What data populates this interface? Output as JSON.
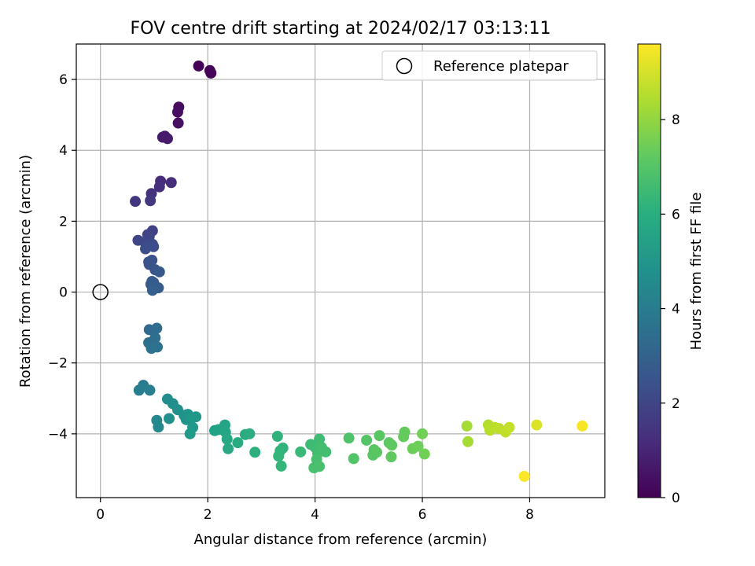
{
  "chart_data": {
    "type": "scatter",
    "title": "FOV centre drift starting at 2024/02/17 03:13:11",
    "xlabel": "Angular distance from reference (arcmin)",
    "ylabel": "Rotation from reference (arcmin)",
    "xlim": [
      -0.45,
      9.4
    ],
    "ylim": [
      -5.8,
      7.0
    ],
    "xticks": [
      0,
      2,
      4,
      6,
      8
    ],
    "xtick_labels": [
      "0",
      "2",
      "4",
      "6",
      "8"
    ],
    "yticks": [
      -4,
      -2,
      0,
      2,
      4,
      6
    ],
    "ytick_labels": [
      "−4",
      "−2",
      "0",
      "2",
      "4",
      "6"
    ],
    "grid": true,
    "legend": {
      "placement": "top-right",
      "entries": [
        {
          "label": "Reference platepar",
          "marker": "open-circle"
        }
      ]
    },
    "reference_point": {
      "x": 0,
      "y": 0,
      "label": "Reference platepar"
    },
    "colorbar": {
      "label": "Hours from first FF file",
      "range": [
        0,
        9.6
      ],
      "ticks": [
        0,
        2,
        4,
        6,
        8
      ],
      "tick_labels": [
        "0",
        "2",
        "4",
        "6",
        "8"
      ],
      "colormap": "viridis"
    },
    "series": [
      {
        "columns": [
          "x",
          "y",
          "hours"
        ],
        "points": [
          [
            1.83,
            6.38,
            0.05
          ],
          [
            2.04,
            6.25,
            0.1
          ],
          [
            2.06,
            6.18,
            0.15
          ],
          [
            1.46,
            5.22,
            0.3
          ],
          [
            1.44,
            5.08,
            0.35
          ],
          [
            1.45,
            4.77,
            0.45
          ],
          [
            1.2,
            4.4,
            0.6
          ],
          [
            1.16,
            4.37,
            0.65
          ],
          [
            1.25,
            4.33,
            0.7
          ],
          [
            1.12,
            3.13,
            1.2
          ],
          [
            1.32,
            3.09,
            1.25
          ],
          [
            1.1,
            2.97,
            1.3
          ],
          [
            0.95,
            2.78,
            1.4
          ],
          [
            0.65,
            2.56,
            1.5
          ],
          [
            0.93,
            2.58,
            1.55
          ],
          [
            0.97,
            1.73,
            1.9
          ],
          [
            0.88,
            1.62,
            1.95
          ],
          [
            0.91,
            1.57,
            2.0
          ],
          [
            0.7,
            1.46,
            2.05
          ],
          [
            0.83,
            1.4,
            2.1
          ],
          [
            0.97,
            1.35,
            2.15
          ],
          [
            0.88,
            1.3,
            2.2
          ],
          [
            0.84,
            1.22,
            2.25
          ],
          [
            0.99,
            1.28,
            2.25
          ],
          [
            0.96,
            0.9,
            2.4
          ],
          [
            0.9,
            0.85,
            2.45
          ],
          [
            0.91,
            0.78,
            2.5
          ],
          [
            1.02,
            0.63,
            2.55
          ],
          [
            1.1,
            0.57,
            2.6
          ],
          [
            0.96,
            0.3,
            2.7
          ],
          [
            0.99,
            0.27,
            2.75
          ],
          [
            0.94,
            0.22,
            2.8
          ],
          [
            1.08,
            0.12,
            2.85
          ],
          [
            0.97,
            0.05,
            2.9
          ],
          [
            0.91,
            -1.06,
            3.3
          ],
          [
            1.05,
            -1.02,
            3.35
          ],
          [
            1.02,
            -1.29,
            3.45
          ],
          [
            0.9,
            -1.43,
            3.5
          ],
          [
            1.06,
            -1.55,
            3.55
          ],
          [
            0.95,
            -1.59,
            3.6
          ],
          [
            0.8,
            -2.63,
            4.0
          ],
          [
            0.72,
            -2.77,
            4.05
          ],
          [
            0.92,
            -2.77,
            4.1
          ],
          [
            1.05,
            -3.62,
            4.5
          ],
          [
            1.08,
            -3.81,
            4.55
          ],
          [
            1.25,
            -3.02,
            4.7
          ],
          [
            1.35,
            -3.15,
            4.75
          ],
          [
            1.44,
            -3.32,
            4.8
          ],
          [
            1.28,
            -3.57,
            4.85
          ],
          [
            1.56,
            -3.48,
            4.9
          ],
          [
            1.6,
            -3.6,
            5.0
          ],
          [
            1.63,
            -3.45,
            5.0
          ],
          [
            1.7,
            -3.55,
            5.05
          ],
          [
            1.78,
            -3.52,
            5.1
          ],
          [
            1.72,
            -3.82,
            5.15
          ],
          [
            1.67,
            -4.0,
            5.2
          ],
          [
            2.13,
            -3.91,
            5.5
          ],
          [
            2.2,
            -3.88,
            5.55
          ],
          [
            2.32,
            -3.75,
            5.6
          ],
          [
            2.33,
            -3.95,
            5.65
          ],
          [
            2.36,
            -4.15,
            5.7
          ],
          [
            2.38,
            -4.42,
            5.75
          ],
          [
            2.56,
            -4.25,
            5.85
          ],
          [
            2.7,
            -4.02,
            5.9
          ],
          [
            2.78,
            -4.0,
            5.95
          ],
          [
            2.88,
            -4.52,
            6.05
          ],
          [
            3.3,
            -4.07,
            6.2
          ],
          [
            3.35,
            -4.48,
            6.25
          ],
          [
            3.4,
            -4.4,
            6.25
          ],
          [
            3.32,
            -4.63,
            6.3
          ],
          [
            3.37,
            -4.91,
            6.35
          ],
          [
            3.73,
            -4.51,
            6.5
          ],
          [
            3.92,
            -4.3,
            6.55
          ],
          [
            4.0,
            -4.38,
            6.6
          ],
          [
            4.08,
            -4.15,
            6.6
          ],
          [
            4.05,
            -4.55,
            6.65
          ],
          [
            4.12,
            -4.38,
            6.7
          ],
          [
            4.2,
            -4.51,
            6.7
          ],
          [
            4.03,
            -4.72,
            6.75
          ],
          [
            3.98,
            -4.96,
            6.75
          ],
          [
            4.08,
            -4.92,
            6.8
          ],
          [
            4.63,
            -4.12,
            6.9
          ],
          [
            4.72,
            -4.7,
            6.95
          ],
          [
            4.96,
            -4.18,
            7.0
          ],
          [
            5.1,
            -4.45,
            7.05
          ],
          [
            5.08,
            -4.6,
            7.05
          ],
          [
            5.2,
            -4.05,
            7.1
          ],
          [
            5.15,
            -4.52,
            7.1
          ],
          [
            5.38,
            -4.25,
            7.15
          ],
          [
            5.43,
            -4.32,
            7.2
          ],
          [
            5.42,
            -4.65,
            7.2
          ],
          [
            5.67,
            -3.95,
            7.3
          ],
          [
            5.65,
            -4.08,
            7.3
          ],
          [
            5.82,
            -4.42,
            7.4
          ],
          [
            5.92,
            -4.35,
            7.45
          ],
          [
            6.0,
            -4.0,
            7.5
          ],
          [
            6.04,
            -4.57,
            7.5
          ],
          [
            6.83,
            -3.78,
            8.3
          ],
          [
            6.85,
            -4.22,
            8.3
          ],
          [
            7.23,
            -3.75,
            8.5
          ],
          [
            7.26,
            -3.9,
            8.55
          ],
          [
            7.35,
            -3.82,
            8.6
          ],
          [
            7.43,
            -3.85,
            8.65
          ],
          [
            7.55,
            -3.95,
            8.7
          ],
          [
            7.62,
            -3.82,
            8.75
          ],
          [
            8.13,
            -3.75,
            9.1
          ],
          [
            8.98,
            -3.78,
            9.5
          ],
          [
            7.9,
            -5.2,
            9.55
          ]
        ]
      }
    ]
  }
}
